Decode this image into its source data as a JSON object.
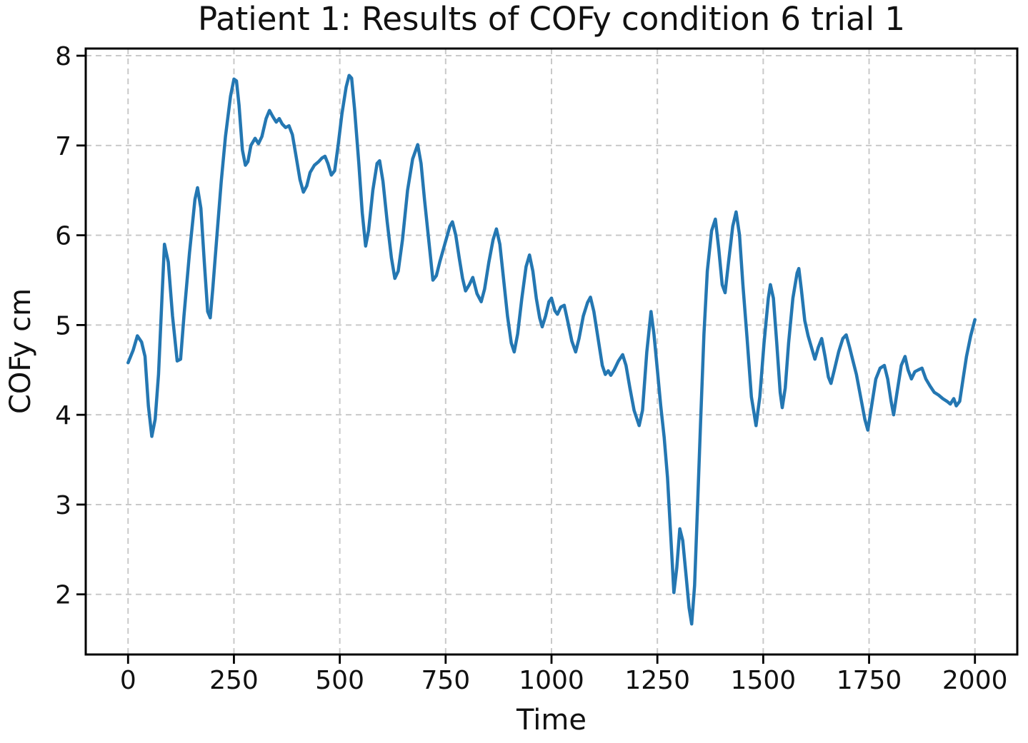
{
  "chart_data": {
    "type": "line",
    "title": "Patient 1: Results of COFy condition 6 trial 1",
    "xlabel": "Time",
    "ylabel": "COFy cm",
    "xlim": [
      -100,
      2100
    ],
    "ylim": [
      1.33,
      8.08
    ],
    "x_ticks": [
      0,
      250,
      500,
      750,
      1000,
      1250,
      1500,
      1750,
      2000
    ],
    "y_ticks": [
      2,
      3,
      4,
      5,
      6,
      7,
      8
    ],
    "grid": "dashed",
    "grid_color": "#c9c9c9",
    "line_color": "#2477b2",
    "series_name": "COFy",
    "points": [
      [
        0,
        4.58
      ],
      [
        12,
        4.72
      ],
      [
        22,
        4.88
      ],
      [
        32,
        4.81
      ],
      [
        40,
        4.65
      ],
      [
        48,
        4.1
      ],
      [
        56,
        3.76
      ],
      [
        64,
        3.95
      ],
      [
        72,
        4.45
      ],
      [
        80,
        5.3
      ],
      [
        86,
        5.9
      ],
      [
        95,
        5.7
      ],
      [
        105,
        5.1
      ],
      [
        116,
        4.6
      ],
      [
        124,
        4.62
      ],
      [
        132,
        5.1
      ],
      [
        145,
        5.8
      ],
      [
        158,
        6.4
      ],
      [
        164,
        6.53
      ],
      [
        172,
        6.3
      ],
      [
        180,
        5.7
      ],
      [
        188,
        5.15
      ],
      [
        194,
        5.08
      ],
      [
        200,
        5.4
      ],
      [
        210,
        6.0
      ],
      [
        220,
        6.6
      ],
      [
        230,
        7.1
      ],
      [
        242,
        7.55
      ],
      [
        250,
        7.74
      ],
      [
        256,
        7.72
      ],
      [
        262,
        7.45
      ],
      [
        270,
        6.95
      ],
      [
        277,
        6.78
      ],
      [
        283,
        6.82
      ],
      [
        290,
        7.0
      ],
      [
        300,
        7.08
      ],
      [
        308,
        7.02
      ],
      [
        316,
        7.1
      ],
      [
        326,
        7.3
      ],
      [
        334,
        7.39
      ],
      [
        342,
        7.32
      ],
      [
        350,
        7.26
      ],
      [
        357,
        7.3
      ],
      [
        364,
        7.24
      ],
      [
        372,
        7.2
      ],
      [
        380,
        7.22
      ],
      [
        388,
        7.12
      ],
      [
        396,
        6.9
      ],
      [
        406,
        6.62
      ],
      [
        414,
        6.48
      ],
      [
        422,
        6.55
      ],
      [
        430,
        6.7
      ],
      [
        440,
        6.78
      ],
      [
        450,
        6.82
      ],
      [
        458,
        6.86
      ],
      [
        465,
        6.88
      ],
      [
        472,
        6.8
      ],
      [
        480,
        6.67
      ],
      [
        488,
        6.72
      ],
      [
        496,
        7.0
      ],
      [
        505,
        7.35
      ],
      [
        515,
        7.65
      ],
      [
        522,
        7.78
      ],
      [
        528,
        7.75
      ],
      [
        535,
        7.4
      ],
      [
        545,
        6.8
      ],
      [
        553,
        6.25
      ],
      [
        561,
        5.88
      ],
      [
        568,
        6.05
      ],
      [
        578,
        6.5
      ],
      [
        588,
        6.8
      ],
      [
        594,
        6.83
      ],
      [
        602,
        6.6
      ],
      [
        612,
        6.15
      ],
      [
        622,
        5.75
      ],
      [
        630,
        5.52
      ],
      [
        638,
        5.6
      ],
      [
        648,
        5.95
      ],
      [
        660,
        6.5
      ],
      [
        672,
        6.85
      ],
      [
        684,
        7.01
      ],
      [
        692,
        6.8
      ],
      [
        700,
        6.4
      ],
      [
        710,
        5.95
      ],
      [
        720,
        5.5
      ],
      [
        728,
        5.55
      ],
      [
        736,
        5.7
      ],
      [
        748,
        5.9
      ],
      [
        760,
        6.1
      ],
      [
        766,
        6.15
      ],
      [
        774,
        6.0
      ],
      [
        782,
        5.75
      ],
      [
        790,
        5.52
      ],
      [
        797,
        5.38
      ],
      [
        806,
        5.45
      ],
      [
        814,
        5.53
      ],
      [
        824,
        5.35
      ],
      [
        834,
        5.26
      ],
      [
        842,
        5.4
      ],
      [
        852,
        5.7
      ],
      [
        862,
        5.95
      ],
      [
        870,
        6.07
      ],
      [
        878,
        5.9
      ],
      [
        886,
        5.55
      ],
      [
        896,
        5.1
      ],
      [
        905,
        4.8
      ],
      [
        912,
        4.7
      ],
      [
        920,
        4.9
      ],
      [
        930,
        5.3
      ],
      [
        940,
        5.65
      ],
      [
        948,
        5.78
      ],
      [
        956,
        5.6
      ],
      [
        964,
        5.3
      ],
      [
        972,
        5.08
      ],
      [
        978,
        4.98
      ],
      [
        986,
        5.1
      ],
      [
        994,
        5.26
      ],
      [
        1000,
        5.3
      ],
      [
        1008,
        5.16
      ],
      [
        1014,
        5.12
      ],
      [
        1022,
        5.2
      ],
      [
        1030,
        5.22
      ],
      [
        1038,
        5.05
      ],
      [
        1048,
        4.82
      ],
      [
        1057,
        4.7
      ],
      [
        1065,
        4.85
      ],
      [
        1075,
        5.1
      ],
      [
        1085,
        5.25
      ],
      [
        1092,
        5.31
      ],
      [
        1100,
        5.15
      ],
      [
        1110,
        4.85
      ],
      [
        1120,
        4.55
      ],
      [
        1127,
        4.45
      ],
      [
        1134,
        4.49
      ],
      [
        1140,
        4.44
      ],
      [
        1148,
        4.5
      ],
      [
        1158,
        4.6
      ],
      [
        1168,
        4.67
      ],
      [
        1176,
        4.55
      ],
      [
        1185,
        4.3
      ],
      [
        1195,
        4.05
      ],
      [
        1207,
        3.88
      ],
      [
        1215,
        4.05
      ],
      [
        1225,
        4.7
      ],
      [
        1235,
        5.15
      ],
      [
        1242,
        4.9
      ],
      [
        1250,
        4.5
      ],
      [
        1258,
        4.1
      ],
      [
        1266,
        3.75
      ],
      [
        1274,
        3.3
      ],
      [
        1281,
        2.7
      ],
      [
        1289,
        2.02
      ],
      [
        1296,
        2.3
      ],
      [
        1303,
        2.73
      ],
      [
        1310,
        2.6
      ],
      [
        1318,
        2.2
      ],
      [
        1325,
        1.85
      ],
      [
        1331,
        1.67
      ],
      [
        1338,
        2.1
      ],
      [
        1345,
        3.0
      ],
      [
        1352,
        3.9
      ],
      [
        1360,
        4.9
      ],
      [
        1368,
        5.6
      ],
      [
        1378,
        6.05
      ],
      [
        1387,
        6.18
      ],
      [
        1395,
        5.85
      ],
      [
        1403,
        5.45
      ],
      [
        1410,
        5.36
      ],
      [
        1418,
        5.7
      ],
      [
        1428,
        6.1
      ],
      [
        1436,
        6.26
      ],
      [
        1444,
        6.0
      ],
      [
        1452,
        5.45
      ],
      [
        1462,
        4.85
      ],
      [
        1472,
        4.2
      ],
      [
        1483,
        3.88
      ],
      [
        1492,
        4.2
      ],
      [
        1502,
        4.8
      ],
      [
        1512,
        5.3
      ],
      [
        1517,
        5.45
      ],
      [
        1524,
        5.3
      ],
      [
        1532,
        4.8
      ],
      [
        1540,
        4.25
      ],
      [
        1545,
        4.08
      ],
      [
        1552,
        4.3
      ],
      [
        1560,
        4.8
      ],
      [
        1570,
        5.3
      ],
      [
        1580,
        5.58
      ],
      [
        1584,
        5.63
      ],
      [
        1590,
        5.4
      ],
      [
        1598,
        5.05
      ],
      [
        1606,
        4.88
      ],
      [
        1614,
        4.75
      ],
      [
        1622,
        4.62
      ],
      [
        1630,
        4.75
      ],
      [
        1638,
        4.85
      ],
      [
        1646,
        4.65
      ],
      [
        1654,
        4.42
      ],
      [
        1660,
        4.35
      ],
      [
        1668,
        4.5
      ],
      [
        1678,
        4.7
      ],
      [
        1688,
        4.85
      ],
      [
        1696,
        4.89
      ],
      [
        1704,
        4.75
      ],
      [
        1712,
        4.6
      ],
      [
        1720,
        4.45
      ],
      [
        1730,
        4.2
      ],
      [
        1740,
        3.95
      ],
      [
        1747,
        3.83
      ],
      [
        1756,
        4.1
      ],
      [
        1766,
        4.4
      ],
      [
        1776,
        4.52
      ],
      [
        1786,
        4.55
      ],
      [
        1794,
        4.4
      ],
      [
        1802,
        4.15
      ],
      [
        1808,
        4.0
      ],
      [
        1816,
        4.25
      ],
      [
        1826,
        4.55
      ],
      [
        1835,
        4.65
      ],
      [
        1842,
        4.5
      ],
      [
        1850,
        4.4
      ],
      [
        1858,
        4.48
      ],
      [
        1866,
        4.5
      ],
      [
        1875,
        4.52
      ],
      [
        1884,
        4.4
      ],
      [
        1894,
        4.32
      ],
      [
        1904,
        4.25
      ],
      [
        1914,
        4.22
      ],
      [
        1924,
        4.18
      ],
      [
        1934,
        4.15
      ],
      [
        1942,
        4.12
      ],
      [
        1950,
        4.18
      ],
      [
        1956,
        4.1
      ],
      [
        1964,
        4.15
      ],
      [
        1972,
        4.4
      ],
      [
        1980,
        4.65
      ],
      [
        1990,
        4.88
      ],
      [
        2000,
        5.06
      ]
    ]
  }
}
